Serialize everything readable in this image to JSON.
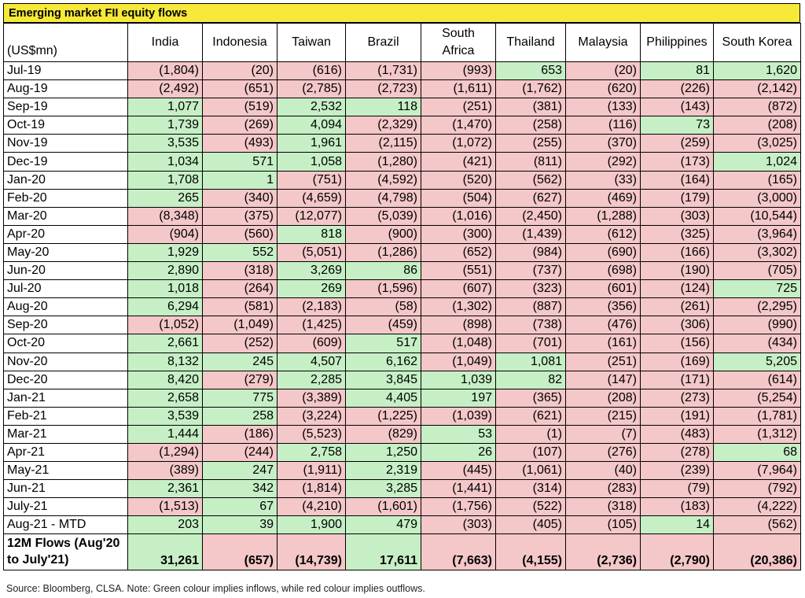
{
  "title": "Emerging market FII equity flows",
  "unit_label": "(US$mn)",
  "columns": [
    "India",
    "Indonesia",
    "Taiwan",
    "Brazil",
    "South Africa",
    "Thailand",
    "Malaysia",
    "Philippines",
    "South Korea"
  ],
  "rows": [
    {
      "label": "Jul-19",
      "cells": [
        {
          "text": "(1,804)",
          "value": -1804
        },
        {
          "text": "(20)",
          "value": -20
        },
        {
          "text": "(616)",
          "value": -616
        },
        {
          "text": "(1,731)",
          "value": -1731
        },
        {
          "text": "(993)",
          "value": -993
        },
        {
          "text": "653",
          "value": 653
        },
        {
          "text": "(20)",
          "value": -20
        },
        {
          "text": "81",
          "value": 81
        },
        {
          "text": "1,620",
          "value": 1620
        }
      ]
    },
    {
      "label": "Aug-19",
      "cells": [
        {
          "text": "(2,492)",
          "value": -2492
        },
        {
          "text": "(651)",
          "value": -651
        },
        {
          "text": "(2,785)",
          "value": -2785
        },
        {
          "text": "(2,723)",
          "value": -2723
        },
        {
          "text": "(1,611)",
          "value": -1611
        },
        {
          "text": "(1,762)",
          "value": -1762
        },
        {
          "text": "(620)",
          "value": -620
        },
        {
          "text": "(226)",
          "value": -226
        },
        {
          "text": "(2,142)",
          "value": -2142
        }
      ]
    },
    {
      "label": "Sep-19",
      "cells": [
        {
          "text": "1,077",
          "value": 1077
        },
        {
          "text": "(519)",
          "value": -519
        },
        {
          "text": "2,532",
          "value": 2532
        },
        {
          "text": "118",
          "value": 118
        },
        {
          "text": "(251)",
          "value": -251
        },
        {
          "text": "(381)",
          "value": -381
        },
        {
          "text": "(133)",
          "value": -133
        },
        {
          "text": "(143)",
          "value": -143
        },
        {
          "text": "(872)",
          "value": -872
        }
      ]
    },
    {
      "label": "Oct-19",
      "cells": [
        {
          "text": "1,739",
          "value": 1739
        },
        {
          "text": "(269)",
          "value": -269
        },
        {
          "text": "4,094",
          "value": 4094
        },
        {
          "text": "(2,329)",
          "value": -2329
        },
        {
          "text": "(1,470)",
          "value": -1470
        },
        {
          "text": "(258)",
          "value": -258
        },
        {
          "text": "(116)",
          "value": -116
        },
        {
          "text": "73",
          "value": 73
        },
        {
          "text": "(208)",
          "value": -208
        }
      ]
    },
    {
      "label": "Nov-19",
      "cells": [
        {
          "text": "3,535",
          "value": 3535
        },
        {
          "text": "(493)",
          "value": -493
        },
        {
          "text": "1,961",
          "value": 1961
        },
        {
          "text": "(2,115)",
          "value": -2115
        },
        {
          "text": "(1,072)",
          "value": -1072
        },
        {
          "text": "(255)",
          "value": -255
        },
        {
          "text": "(370)",
          "value": -370
        },
        {
          "text": "(259)",
          "value": -259
        },
        {
          "text": "(3,025)",
          "value": -3025
        }
      ]
    },
    {
      "label": "Dec-19",
      "cells": [
        {
          "text": "1,034",
          "value": 1034
        },
        {
          "text": "571",
          "value": 571
        },
        {
          "text": "1,058",
          "value": 1058
        },
        {
          "text": "(1,280)",
          "value": -1280
        },
        {
          "text": "(421)",
          "value": -421
        },
        {
          "text": "(811)",
          "value": -811
        },
        {
          "text": "(292)",
          "value": -292
        },
        {
          "text": "(173)",
          "value": -173
        },
        {
          "text": "1,024",
          "value": 1024
        }
      ]
    },
    {
      "label": "Jan-20",
      "cells": [
        {
          "text": "1,708",
          "value": 1708
        },
        {
          "text": "1",
          "value": 1
        },
        {
          "text": "(751)",
          "value": -751
        },
        {
          "text": "(4,592)",
          "value": -4592
        },
        {
          "text": "(520)",
          "value": -520
        },
        {
          "text": "(562)",
          "value": -562
        },
        {
          "text": "(33)",
          "value": -33
        },
        {
          "text": "(164)",
          "value": -164
        },
        {
          "text": "(165)",
          "value": -165
        }
      ]
    },
    {
      "label": "Feb-20",
      "cells": [
        {
          "text": "265",
          "value": 265
        },
        {
          "text": "(340)",
          "value": -340
        },
        {
          "text": "(4,659)",
          "value": -4659
        },
        {
          "text": "(4,798)",
          "value": -4798
        },
        {
          "text": "(504)",
          "value": -504
        },
        {
          "text": "(627)",
          "value": -627
        },
        {
          "text": "(469)",
          "value": -469
        },
        {
          "text": "(179)",
          "value": -179
        },
        {
          "text": "(3,000)",
          "value": -3000
        }
      ]
    },
    {
      "label": "Mar-20",
      "cells": [
        {
          "text": "(8,348)",
          "value": -8348
        },
        {
          "text": "(375)",
          "value": -375
        },
        {
          "text": "(12,077)",
          "value": -12077
        },
        {
          "text": "(5,039)",
          "value": -5039
        },
        {
          "text": "(1,016)",
          "value": -1016
        },
        {
          "text": "(2,450)",
          "value": -2450
        },
        {
          "text": "(1,288)",
          "value": -1288
        },
        {
          "text": "(303)",
          "value": -303
        },
        {
          "text": "(10,544)",
          "value": -10544
        }
      ]
    },
    {
      "label": "Apr-20",
      "cells": [
        {
          "text": "(904)",
          "value": -904
        },
        {
          "text": "(560)",
          "value": -560
        },
        {
          "text": "818",
          "value": 818
        },
        {
          "text": "(900)",
          "value": -900
        },
        {
          "text": "(300)",
          "value": -300
        },
        {
          "text": "(1,439)",
          "value": -1439
        },
        {
          "text": "(612)",
          "value": -612
        },
        {
          "text": "(325)",
          "value": -325
        },
        {
          "text": "(3,964)",
          "value": -3964
        }
      ]
    },
    {
      "label": "May-20",
      "cells": [
        {
          "text": "1,929",
          "value": 1929
        },
        {
          "text": "552",
          "value": 552
        },
        {
          "text": "(5,051)",
          "value": -5051
        },
        {
          "text": "(1,286)",
          "value": -1286
        },
        {
          "text": "(652)",
          "value": -652
        },
        {
          "text": "(984)",
          "value": -984
        },
        {
          "text": "(690)",
          "value": -690
        },
        {
          "text": "(166)",
          "value": -166
        },
        {
          "text": "(3,302)",
          "value": -3302
        }
      ]
    },
    {
      "label": "Jun-20",
      "cells": [
        {
          "text": "2,890",
          "value": 2890
        },
        {
          "text": "(318)",
          "value": -318
        },
        {
          "text": "3,269",
          "value": 3269
        },
        {
          "text": "86",
          "value": 86
        },
        {
          "text": "(551)",
          "value": -551
        },
        {
          "text": "(737)",
          "value": -737
        },
        {
          "text": "(698)",
          "value": -698
        },
        {
          "text": "(190)",
          "value": -190
        },
        {
          "text": "(705)",
          "value": -705
        }
      ]
    },
    {
      "label": "Jul-20",
      "cells": [
        {
          "text": "1,018",
          "value": 1018
        },
        {
          "text": "(264)",
          "value": -264
        },
        {
          "text": "269",
          "value": 269
        },
        {
          "text": "(1,596)",
          "value": -1596
        },
        {
          "text": "(607)",
          "value": -607
        },
        {
          "text": "(323)",
          "value": -323
        },
        {
          "text": "(601)",
          "value": -601
        },
        {
          "text": "(124)",
          "value": -124
        },
        {
          "text": "725",
          "value": 725
        }
      ]
    },
    {
      "label": "Aug-20",
      "cells": [
        {
          "text": "6,294",
          "value": 6294
        },
        {
          "text": "(581)",
          "value": -581
        },
        {
          "text": "(2,183)",
          "value": -2183
        },
        {
          "text": "(58)",
          "value": -58
        },
        {
          "text": "(1,302)",
          "value": -1302
        },
        {
          "text": "(887)",
          "value": -887
        },
        {
          "text": "(356)",
          "value": -356
        },
        {
          "text": "(261)",
          "value": -261
        },
        {
          "text": "(2,295)",
          "value": -2295
        }
      ]
    },
    {
      "label": "Sep-20",
      "cells": [
        {
          "text": "(1,052)",
          "value": -1052
        },
        {
          "text": "(1,049)",
          "value": -1049
        },
        {
          "text": "(1,425)",
          "value": -1425
        },
        {
          "text": "(459)",
          "value": -459
        },
        {
          "text": "(898)",
          "value": -898
        },
        {
          "text": "(738)",
          "value": -738
        },
        {
          "text": "(476)",
          "value": -476
        },
        {
          "text": "(306)",
          "value": -306
        },
        {
          "text": "(990)",
          "value": -990
        }
      ]
    },
    {
      "label": "Oct-20",
      "cells": [
        {
          "text": "2,661",
          "value": 2661
        },
        {
          "text": "(252)",
          "value": -252
        },
        {
          "text": "(609)",
          "value": -609
        },
        {
          "text": "517",
          "value": 517
        },
        {
          "text": "(1,048)",
          "value": -1048
        },
        {
          "text": "(701)",
          "value": -701
        },
        {
          "text": "(161)",
          "value": -161
        },
        {
          "text": "(156)",
          "value": -156
        },
        {
          "text": "(434)",
          "value": -434
        }
      ]
    },
    {
      "label": "Nov-20",
      "cells": [
        {
          "text": "8,132",
          "value": 8132
        },
        {
          "text": "245",
          "value": 245
        },
        {
          "text": "4,507",
          "value": 4507
        },
        {
          "text": "6,162",
          "value": 6162
        },
        {
          "text": "(1,049)",
          "value": -1049
        },
        {
          "text": "1,081",
          "value": 1081
        },
        {
          "text": "(251)",
          "value": -251
        },
        {
          "text": "(169)",
          "value": -169
        },
        {
          "text": "5,205",
          "value": 5205
        }
      ]
    },
    {
      "label": "Dec-20",
      "cells": [
        {
          "text": "8,420",
          "value": 8420
        },
        {
          "text": "(279)",
          "value": -279
        },
        {
          "text": "2,285",
          "value": 2285
        },
        {
          "text": "3,845",
          "value": 3845
        },
        {
          "text": "1,039",
          "value": 1039
        },
        {
          "text": "82",
          "value": 82
        },
        {
          "text": "(147)",
          "value": -147
        },
        {
          "text": "(171)",
          "value": -171
        },
        {
          "text": "(614)",
          "value": -614
        }
      ]
    },
    {
      "label": "Jan-21",
      "cells": [
        {
          "text": "2,658",
          "value": 2658
        },
        {
          "text": "775",
          "value": 775
        },
        {
          "text": "(3,389)",
          "value": -3389
        },
        {
          "text": "4,405",
          "value": 4405
        },
        {
          "text": "197",
          "value": 197
        },
        {
          "text": "(365)",
          "value": -365
        },
        {
          "text": "(208)",
          "value": -208
        },
        {
          "text": "(273)",
          "value": -273
        },
        {
          "text": "(5,254)",
          "value": -5254
        }
      ]
    },
    {
      "label": "Feb-21",
      "cells": [
        {
          "text": "3,539",
          "value": 3539
        },
        {
          "text": "258",
          "value": 258
        },
        {
          "text": "(3,224)",
          "value": -3224
        },
        {
          "text": "(1,225)",
          "value": -1225
        },
        {
          "text": "(1,039)",
          "value": -1039
        },
        {
          "text": "(621)",
          "value": -621
        },
        {
          "text": "(215)",
          "value": -215
        },
        {
          "text": "(191)",
          "value": -191
        },
        {
          "text": "(1,781)",
          "value": -1781
        }
      ]
    },
    {
      "label": "Mar-21",
      "cells": [
        {
          "text": "1,444",
          "value": 1444
        },
        {
          "text": "(186)",
          "value": -186
        },
        {
          "text": "(5,523)",
          "value": -5523
        },
        {
          "text": "(829)",
          "value": -829
        },
        {
          "text": "53",
          "value": 53
        },
        {
          "text": "(1)",
          "value": -1
        },
        {
          "text": "(7)",
          "value": -7
        },
        {
          "text": "(483)",
          "value": -483
        },
        {
          "text": "(1,312)",
          "value": -1312
        }
      ]
    },
    {
      "label": "Apr-21",
      "cells": [
        {
          "text": "(1,294)",
          "value": -1294
        },
        {
          "text": "(244)",
          "value": -244
        },
        {
          "text": "2,758",
          "value": 2758
        },
        {
          "text": "1,250",
          "value": 1250
        },
        {
          "text": "26",
          "value": 26
        },
        {
          "text": "(107)",
          "value": -107
        },
        {
          "text": "(276)",
          "value": -276
        },
        {
          "text": "(278)",
          "value": -278
        },
        {
          "text": "68",
          "value": 68
        }
      ]
    },
    {
      "label": "May-21",
      "cells": [
        {
          "text": "(389)",
          "value": -389
        },
        {
          "text": "247",
          "value": 247
        },
        {
          "text": "(1,911)",
          "value": -1911
        },
        {
          "text": "2,319",
          "value": 2319
        },
        {
          "text": "(445)",
          "value": -445
        },
        {
          "text": "(1,061)",
          "value": -1061
        },
        {
          "text": "(40)",
          "value": -40
        },
        {
          "text": "(239)",
          "value": -239
        },
        {
          "text": "(7,964)",
          "value": -7964
        }
      ]
    },
    {
      "label": "Jun-21",
      "cells": [
        {
          "text": "2,361",
          "value": 2361
        },
        {
          "text": "342",
          "value": 342
        },
        {
          "text": "(1,814)",
          "value": -1814
        },
        {
          "text": "3,285",
          "value": 3285
        },
        {
          "text": "(1,441)",
          "value": -1441
        },
        {
          "text": "(314)",
          "value": -314
        },
        {
          "text": "(283)",
          "value": -283
        },
        {
          "text": "(79)",
          "value": -79
        },
        {
          "text": "(792)",
          "value": -792
        }
      ]
    },
    {
      "label": "July-21",
      "cells": [
        {
          "text": "(1,513)",
          "value": -1513
        },
        {
          "text": "67",
          "value": 67
        },
        {
          "text": "(4,210)",
          "value": -4210
        },
        {
          "text": "(1,601)",
          "value": -1601
        },
        {
          "text": "(1,756)",
          "value": -1756
        },
        {
          "text": "(522)",
          "value": -522
        },
        {
          "text": "(318)",
          "value": -318
        },
        {
          "text": "(183)",
          "value": -183
        },
        {
          "text": "(4,222)",
          "value": -4222
        }
      ]
    },
    {
      "label": "Aug-21 - MTD",
      "cells": [
        {
          "text": "203",
          "value": 203
        },
        {
          "text": "39",
          "value": 39
        },
        {
          "text": "1,900",
          "value": 1900
        },
        {
          "text": "479",
          "value": 479
        },
        {
          "text": "(303)",
          "value": -303
        },
        {
          "text": "(405)",
          "value": -405
        },
        {
          "text": "(105)",
          "value": -105
        },
        {
          "text": "14",
          "value": 14
        },
        {
          "text": "(562)",
          "value": -562
        }
      ]
    }
  ],
  "total_row": {
    "label": "12M Flows (Aug'20 to July'21)",
    "cells": [
      {
        "text": "31,261",
        "value": 31261
      },
      {
        "text": "(657)",
        "value": -657
      },
      {
        "text": "(14,739)",
        "value": -14739
      },
      {
        "text": "17,611",
        "value": 17611
      },
      {
        "text": "(7,663)",
        "value": -7663
      },
      {
        "text": "(4,155)",
        "value": -4155
      },
      {
        "text": "(2,736)",
        "value": -2736
      },
      {
        "text": "(2,790)",
        "value": -2790
      },
      {
        "text": "(20,386)",
        "value": -20386
      }
    ]
  },
  "source_note": "Source: Bloomberg, CLSA. Note: Green colour implies inflows, while red colour implies outflows.",
  "colors": {
    "inflow": "#c6efc6",
    "outflow": "#f4c7c8",
    "title_bg": "#f6e93a"
  }
}
